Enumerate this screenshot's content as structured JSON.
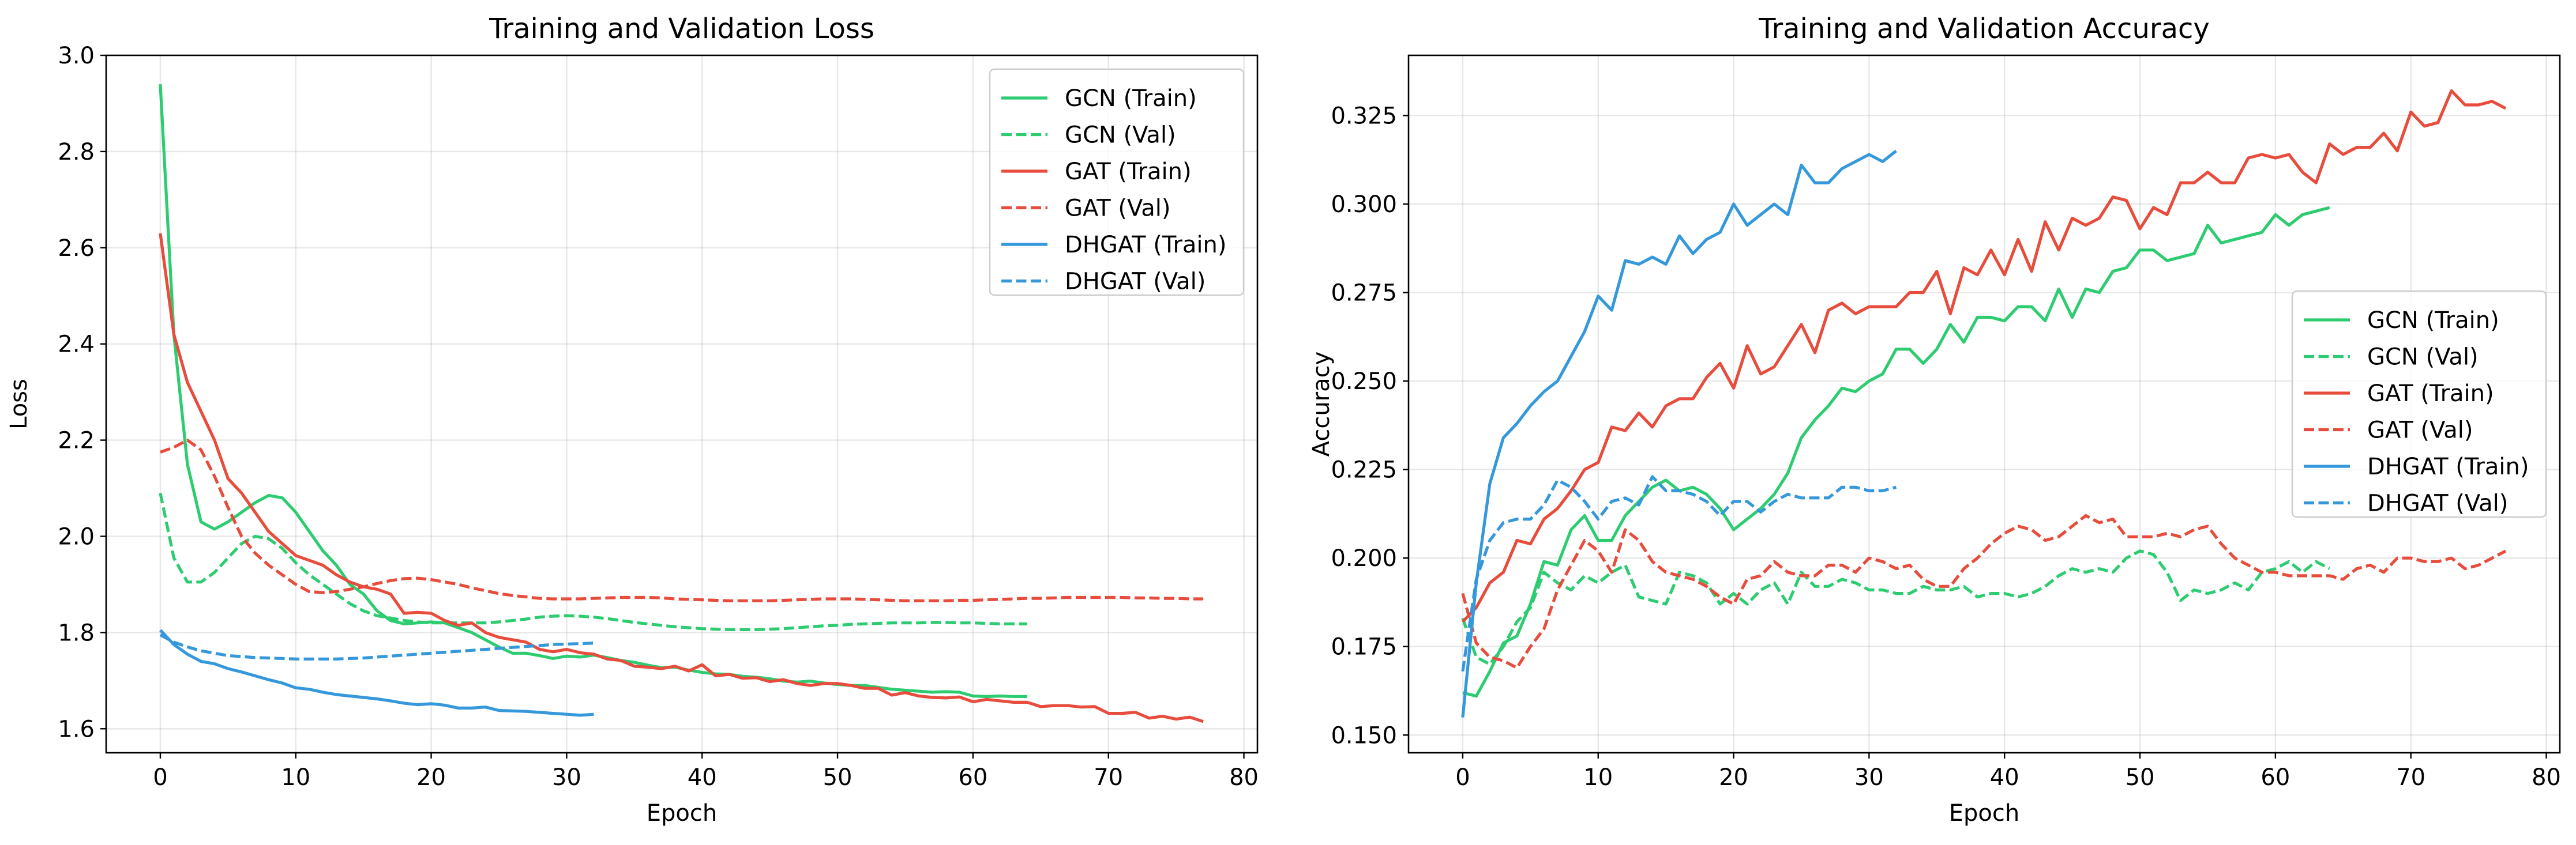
{
  "chart_data": [
    {
      "type": "line",
      "title": "Training and Validation Loss",
      "xlabel": "Epoch",
      "ylabel": "Loss",
      "xlim": [
        -4,
        81
      ],
      "ylim": [
        1.55,
        3.0
      ],
      "xticks": [
        0,
        10,
        20,
        30,
        40,
        50,
        60,
        70,
        80
      ],
      "yticks": [
        1.6,
        1.8,
        2.0,
        2.2,
        2.4,
        2.6,
        2.8,
        3.0
      ],
      "ytick_decimals": 1,
      "grid": true,
      "legend_position": "upper right",
      "series": [
        {
          "name": "GCN (Train)",
          "color": "#2ecc71",
          "dash": "solid",
          "x_start": 0,
          "values": [
            2.94,
            2.42,
            2.15,
            2.03,
            2.015,
            2.03,
            2.05,
            2.07,
            2.085,
            2.08,
            2.05,
            2.01,
            1.97,
            1.94,
            1.9,
            1.88,
            1.845,
            1.825,
            1.818,
            1.82,
            1.822,
            1.82,
            1.81,
            1.8,
            1.785,
            1.77,
            1.757,
            1.757,
            1.752,
            1.746,
            1.751,
            1.749,
            1.753,
            1.748,
            1.742,
            1.738,
            1.732,
            1.727,
            1.728,
            1.722,
            1.717,
            1.714,
            1.713,
            1.709,
            1.707,
            1.704,
            1.699,
            1.697,
            1.699,
            1.695,
            1.692,
            1.69,
            1.69,
            1.686,
            1.682,
            1.68,
            1.678,
            1.676,
            1.677,
            1.676,
            1.668,
            1.667,
            1.668,
            1.667,
            1.667
          ]
        },
        {
          "name": "GCN (Val)",
          "color": "#2ecc71",
          "dash": "dashed",
          "x_start": 0,
          "values": [
            2.09,
            1.955,
            1.905,
            1.905,
            1.925,
            1.955,
            1.985,
            2.0,
            1.995,
            1.975,
            1.945,
            1.92,
            1.9,
            1.88,
            1.86,
            1.845,
            1.835,
            1.83,
            1.825,
            1.822,
            1.82,
            1.82,
            1.82,
            1.82,
            1.82,
            1.822,
            1.825,
            1.828,
            1.832,
            1.834,
            1.835,
            1.834,
            1.832,
            1.829,
            1.825,
            1.821,
            1.818,
            1.815,
            1.812,
            1.81,
            1.808,
            1.807,
            1.806,
            1.806,
            1.806,
            1.807,
            1.808,
            1.81,
            1.812,
            1.814,
            1.815,
            1.817,
            1.818,
            1.819,
            1.82,
            1.82,
            1.82,
            1.821,
            1.821,
            1.82,
            1.82,
            1.819,
            1.818,
            1.818,
            1.818
          ]
        },
        {
          "name": "GAT (Train)",
          "color": "#e74c3c",
          "dash": "solid",
          "x_start": 0,
          "values": [
            2.63,
            2.42,
            2.32,
            2.26,
            2.2,
            2.12,
            2.09,
            2.05,
            2.01,
            1.985,
            1.96,
            1.95,
            1.94,
            1.92,
            1.905,
            1.895,
            1.89,
            1.88,
            1.84,
            1.842,
            1.84,
            1.825,
            1.815,
            1.82,
            1.8,
            1.79,
            1.785,
            1.78,
            1.765,
            1.76,
            1.765,
            1.758,
            1.755,
            1.745,
            1.742,
            1.73,
            1.728,
            1.725,
            1.73,
            1.72,
            1.733,
            1.71,
            1.713,
            1.705,
            1.706,
            1.698,
            1.702,
            1.694,
            1.69,
            1.694,
            1.694,
            1.69,
            1.684,
            1.684,
            1.67,
            1.675,
            1.668,
            1.665,
            1.664,
            1.666,
            1.656,
            1.661,
            1.658,
            1.655,
            1.655,
            1.646,
            1.648,
            1.648,
            1.645,
            1.646,
            1.632,
            1.632,
            1.634,
            1.622,
            1.626,
            1.62,
            1.624,
            1.615
          ]
        },
        {
          "name": "GAT (Val)",
          "color": "#e74c3c",
          "dash": "dashed",
          "x_start": 0,
          "values": [
            2.175,
            2.185,
            2.2,
            2.18,
            2.125,
            2.06,
            2.0,
            1.965,
            1.94,
            1.92,
            1.9,
            1.885,
            1.883,
            1.885,
            1.89,
            1.895,
            1.902,
            1.908,
            1.912,
            1.913,
            1.91,
            1.905,
            1.9,
            1.893,
            1.887,
            1.881,
            1.877,
            1.874,
            1.871,
            1.87,
            1.87,
            1.87,
            1.871,
            1.872,
            1.873,
            1.873,
            1.873,
            1.872,
            1.87,
            1.869,
            1.868,
            1.867,
            1.866,
            1.866,
            1.866,
            1.866,
            1.867,
            1.868,
            1.869,
            1.87,
            1.87,
            1.87,
            1.869,
            1.868,
            1.867,
            1.866,
            1.866,
            1.866,
            1.866,
            1.867,
            1.867,
            1.868,
            1.869,
            1.87,
            1.871,
            1.871,
            1.872,
            1.873,
            1.873,
            1.873,
            1.873,
            1.873,
            1.872,
            1.872,
            1.871,
            1.871,
            1.87,
            1.87
          ]
        },
        {
          "name": "DHGAT (Train)",
          "color": "#3498db",
          "dash": "solid",
          "x_start": 0,
          "values": [
            1.805,
            1.775,
            1.755,
            1.74,
            1.735,
            1.725,
            1.718,
            1.71,
            1.702,
            1.695,
            1.685,
            1.682,
            1.676,
            1.671,
            1.668,
            1.665,
            1.662,
            1.658,
            1.653,
            1.65,
            1.652,
            1.649,
            1.643,
            1.643,
            1.645,
            1.638,
            1.637,
            1.636,
            1.634,
            1.632,
            1.63,
            1.628,
            1.63
          ]
        },
        {
          "name": "DHGAT (Val)",
          "color": "#3498db",
          "dash": "dashed",
          "x_start": 0,
          "values": [
            1.795,
            1.78,
            1.77,
            1.762,
            1.757,
            1.752,
            1.75,
            1.748,
            1.747,
            1.746,
            1.745,
            1.745,
            1.745,
            1.745,
            1.746,
            1.747,
            1.749,
            1.751,
            1.753,
            1.755,
            1.757,
            1.759,
            1.761,
            1.763,
            1.765,
            1.767,
            1.769,
            1.771,
            1.773,
            1.775,
            1.776,
            1.777,
            1.778
          ]
        }
      ]
    },
    {
      "type": "line",
      "title": "Training and Validation Accuracy",
      "xlabel": "Epoch",
      "ylabel": "Accuracy",
      "xlim": [
        -4,
        81
      ],
      "ylim": [
        0.145,
        0.342
      ],
      "xticks": [
        0,
        10,
        20,
        30,
        40,
        50,
        60,
        70,
        80
      ],
      "yticks": [
        0.15,
        0.175,
        0.2,
        0.225,
        0.25,
        0.275,
        0.3,
        0.325
      ],
      "ytick_decimals": 3,
      "grid": true,
      "legend_position": "center right",
      "series": [
        {
          "name": "GCN (Train)",
          "color": "#2ecc71",
          "dash": "solid",
          "x_start": 0,
          "values": [
            0.162,
            0.161,
            0.168,
            0.176,
            0.178,
            0.187,
            0.199,
            0.198,
            0.208,
            0.212,
            0.205,
            0.205,
            0.212,
            0.216,
            0.22,
            0.222,
            0.219,
            0.22,
            0.218,
            0.214,
            0.208,
            0.211,
            0.214,
            0.218,
            0.224,
            0.234,
            0.239,
            0.243,
            0.248,
            0.247,
            0.25,
            0.252,
            0.259,
            0.259,
            0.255,
            0.259,
            0.266,
            0.261,
            0.268,
            0.268,
            0.267,
            0.271,
            0.271,
            0.267,
            0.276,
            0.268,
            0.276,
            0.275,
            0.281,
            0.282,
            0.287,
            0.287,
            0.284,
            0.285,
            0.286,
            0.294,
            0.289,
            0.29,
            0.291,
            0.292,
            0.297,
            0.294,
            0.297,
            0.298,
            0.299
          ]
        },
        {
          "name": "GCN (Val)",
          "color": "#2ecc71",
          "dash": "dashed",
          "x_start": 0,
          "values": [
            0.183,
            0.172,
            0.17,
            0.175,
            0.182,
            0.186,
            0.196,
            0.193,
            0.191,
            0.195,
            0.193,
            0.196,
            0.198,
            0.189,
            0.188,
            0.187,
            0.196,
            0.195,
            0.193,
            0.187,
            0.19,
            0.187,
            0.191,
            0.193,
            0.187,
            0.196,
            0.192,
            0.192,
            0.194,
            0.193,
            0.191,
            0.191,
            0.19,
            0.19,
            0.192,
            0.191,
            0.191,
            0.192,
            0.189,
            0.19,
            0.19,
            0.189,
            0.19,
            0.192,
            0.195,
            0.197,
            0.196,
            0.197,
            0.196,
            0.2,
            0.202,
            0.201,
            0.196,
            0.188,
            0.191,
            0.19,
            0.191,
            0.193,
            0.191,
            0.196,
            0.197,
            0.199,
            0.196,
            0.199,
            0.197
          ]
        },
        {
          "name": "GAT (Train)",
          "color": "#e74c3c",
          "dash": "solid",
          "x_start": 0,
          "values": [
            0.182,
            0.186,
            0.193,
            0.196,
            0.205,
            0.204,
            0.211,
            0.214,
            0.219,
            0.225,
            0.227,
            0.237,
            0.236,
            0.241,
            0.237,
            0.243,
            0.245,
            0.245,
            0.251,
            0.255,
            0.248,
            0.26,
            0.252,
            0.254,
            0.26,
            0.266,
            0.258,
            0.27,
            0.272,
            0.269,
            0.271,
            0.271,
            0.271,
            0.275,
            0.275,
            0.281,
            0.269,
            0.282,
            0.28,
            0.287,
            0.28,
            0.29,
            0.281,
            0.295,
            0.287,
            0.296,
            0.294,
            0.296,
            0.302,
            0.301,
            0.293,
            0.299,
            0.297,
            0.306,
            0.306,
            0.309,
            0.306,
            0.306,
            0.313,
            0.314,
            0.313,
            0.314,
            0.309,
            0.306,
            0.317,
            0.314,
            0.316,
            0.316,
            0.32,
            0.315,
            0.326,
            0.322,
            0.323,
            0.332,
            0.328,
            0.328,
            0.329,
            0.327
          ]
        },
        {
          "name": "GAT (Val)",
          "color": "#e74c3c",
          "dash": "dashed",
          "x_start": 0,
          "values": [
            0.19,
            0.176,
            0.172,
            0.171,
            0.169,
            0.175,
            0.18,
            0.191,
            0.198,
            0.205,
            0.202,
            0.196,
            0.208,
            0.205,
            0.199,
            0.196,
            0.195,
            0.194,
            0.192,
            0.189,
            0.187,
            0.194,
            0.195,
            0.199,
            0.196,
            0.195,
            0.195,
            0.198,
            0.198,
            0.196,
            0.2,
            0.199,
            0.197,
            0.198,
            0.194,
            0.192,
            0.192,
            0.197,
            0.2,
            0.204,
            0.207,
            0.209,
            0.208,
            0.205,
            0.206,
            0.209,
            0.212,
            0.21,
            0.211,
            0.206,
            0.206,
            0.206,
            0.207,
            0.206,
            0.208,
            0.209,
            0.204,
            0.2,
            0.198,
            0.196,
            0.196,
            0.195,
            0.195,
            0.195,
            0.195,
            0.194,
            0.197,
            0.198,
            0.196,
            0.2,
            0.2,
            0.199,
            0.199,
            0.2,
            0.197,
            0.198,
            0.2,
            0.202
          ]
        },
        {
          "name": "DHGAT (Train)",
          "color": "#3498db",
          "dash": "solid",
          "x_start": 0,
          "values": [
            0.155,
            0.193,
            0.221,
            0.234,
            0.238,
            0.243,
            0.247,
            0.25,
            0.257,
            0.264,
            0.274,
            0.27,
            0.284,
            0.283,
            0.285,
            0.283,
            0.291,
            0.286,
            0.29,
            0.292,
            0.3,
            0.294,
            0.297,
            0.3,
            0.297,
            0.311,
            0.306,
            0.306,
            0.31,
            0.312,
            0.314,
            0.312,
            0.315
          ]
        },
        {
          "name": "DHGAT (Val)",
          "color": "#3498db",
          "dash": "dashed",
          "x_start": 0,
          "values": [
            0.168,
            0.194,
            0.205,
            0.21,
            0.211,
            0.211,
            0.215,
            0.222,
            0.22,
            0.216,
            0.211,
            0.216,
            0.217,
            0.215,
            0.223,
            0.219,
            0.219,
            0.218,
            0.216,
            0.212,
            0.216,
            0.216,
            0.213,
            0.216,
            0.218,
            0.217,
            0.217,
            0.217,
            0.22,
            0.22,
            0.219,
            0.219,
            0.22
          ]
        }
      ]
    }
  ]
}
